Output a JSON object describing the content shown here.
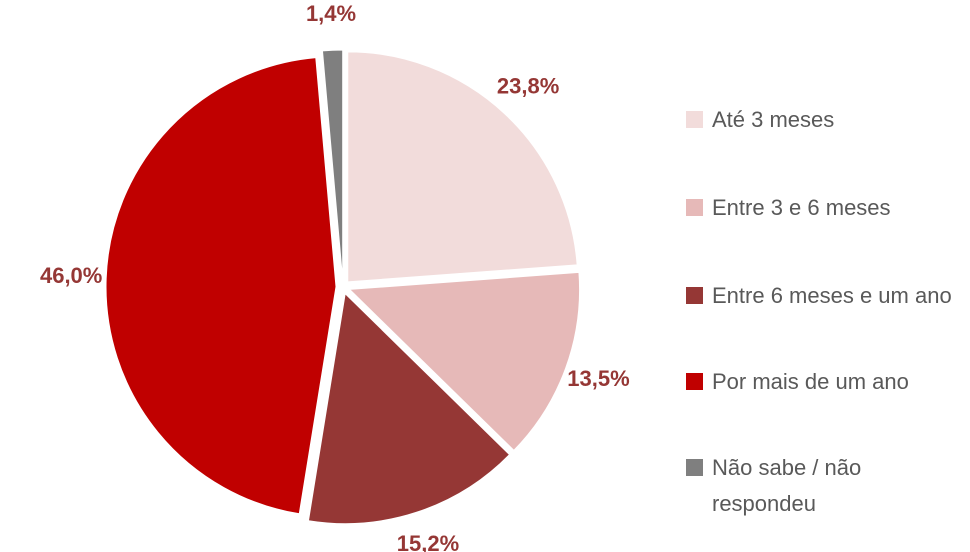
{
  "chart_data": {
    "type": "pie",
    "categories": [
      "Até 3 meses",
      "Entre 3 e 6 meses",
      "Entre 6 meses e um ano",
      "Por mais de um ano",
      "Não sabe / não respondeu"
    ],
    "values": [
      23.8,
      13.5,
      15.2,
      46.0,
      1.4
    ],
    "value_labels": [
      "23,8%",
      "13,5%",
      "15,2%",
      "46,0%",
      "1,4%"
    ],
    "colors": [
      "#f2dcdb",
      "#e6b9b8",
      "#953735",
      "#c00000",
      "#7f7f7f"
    ],
    "legend": "right"
  }
}
